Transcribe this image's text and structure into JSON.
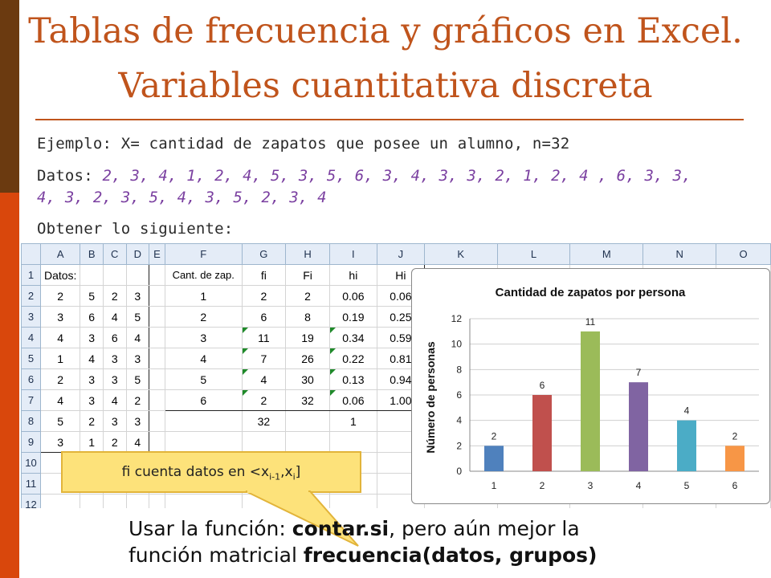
{
  "title": {
    "line1": "Tablas de frecuencia y gráficos en Excel.",
    "line2": "Variables cuantitativa discreta"
  },
  "example": "Ejemplo: X= cantidad de zapatos que posee un alumno, n=32",
  "data_label": "Datos:",
  "data_values_line1": "2, 3, 4, 1, 2, 4, 5, 3, 5, 6, 3, 4, 3, 3, 2, 1, 2, 4 , 6, 3, 3,",
  "data_values_line2": "4, 3, 2, 3, 5, 4, 3, 5, 2, 3, 4",
  "obtain": "Obtener lo siguiente:",
  "sheet": {
    "columns": [
      "A",
      "B",
      "C",
      "D",
      "E",
      "F",
      "G",
      "H",
      "I",
      "J",
      "K",
      "L",
      "M",
      "N",
      "O"
    ],
    "rows": [
      "1",
      "2",
      "3",
      "4",
      "5",
      "6",
      "7",
      "8",
      "9",
      "10",
      "11",
      "12"
    ],
    "datos_label": "Datos:",
    "datos": [
      [
        "2",
        "5",
        "2",
        "3"
      ],
      [
        "3",
        "6",
        "4",
        "5"
      ],
      [
        "4",
        "3",
        "6",
        "4"
      ],
      [
        "1",
        "4",
        "3",
        "3"
      ],
      [
        "2",
        "3",
        "3",
        "5"
      ],
      [
        "4",
        "3",
        "4",
        "2"
      ],
      [
        "5",
        "2",
        "3",
        "3"
      ],
      [
        "3",
        "1",
        "2",
        "4"
      ]
    ],
    "freq_headers": [
      "Cant. de zap.",
      "fi",
      "Fi",
      "hi",
      "Hi"
    ],
    "freq_rows": [
      [
        "1",
        "2",
        "2",
        "0.06",
        "0.06"
      ],
      [
        "2",
        "6",
        "8",
        "0.19",
        "0.25"
      ],
      [
        "3",
        "11",
        "19",
        "0.34",
        "0.59"
      ],
      [
        "4",
        "7",
        "26",
        "0.22",
        "0.81"
      ],
      [
        "5",
        "4",
        "30",
        "0.13",
        "0.94"
      ],
      [
        "6",
        "2",
        "32",
        "0.06",
        "1.00"
      ]
    ],
    "total_fi": "32",
    "total_hi": "1"
  },
  "chart_data": {
    "type": "bar",
    "title": "Cantidad de zapatos por persona",
    "ylabel": "Número de personas",
    "xlabel": "",
    "categories": [
      "1",
      "2",
      "3",
      "4",
      "5",
      "6"
    ],
    "values": [
      2,
      6,
      11,
      7,
      4,
      2
    ],
    "data_labels": [
      "2",
      "6",
      "11",
      "7",
      "4",
      "2"
    ],
    "colors": [
      "#4f81bd",
      "#c0504d",
      "#9bbb59",
      "#8064a2",
      "#4bacc6",
      "#f79646"
    ],
    "ylim": [
      0,
      12
    ],
    "yticks": [
      "0",
      "2",
      "4",
      "6",
      "8",
      "10",
      "12"
    ],
    "grid": true
  },
  "callout": {
    "prefix": "fi cuenta datos en <x",
    "sub1": "i-1",
    "mid": ",x",
    "sub2": "i",
    "suffix": "]"
  },
  "bottom": {
    "line1_a": "Usar la función: ",
    "line1_b": "contar.si",
    "line1_c": ", pero aún mejor la",
    "line2_a": "función matricial ",
    "line2_b": "frecuencia(datos, grupos)"
  }
}
